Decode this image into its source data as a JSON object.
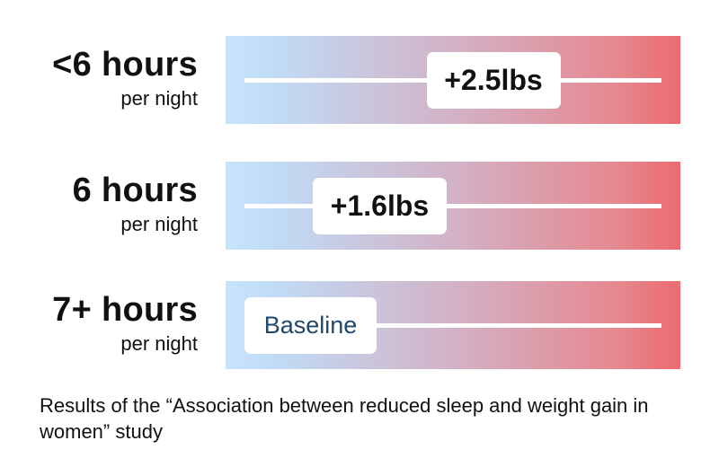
{
  "chart_data": {
    "type": "bar",
    "categories": [
      "<6 hours per night",
      "6 hours per night",
      "7+ hours per night"
    ],
    "values": [
      2.5,
      1.6,
      0
    ],
    "rows": [
      {
        "hours": "<6 hours",
        "per": "per night",
        "value": 2.5,
        "label": "+2.5lbs",
        "style": "strong"
      },
      {
        "hours": "6 hours",
        "per": "per night",
        "value": 1.6,
        "label": "+1.6lbs",
        "style": "strong"
      },
      {
        "hours": "7+ hours",
        "per": "per night",
        "value": 0,
        "label": "Baseline",
        "style": "baseline"
      }
    ],
    "xlim": [
      0,
      3.3
    ],
    "gradient_colors": [
      "#c7e4fb",
      "#d2b2c6",
      "#ec6b70"
    ]
  },
  "caption": "Results of the “Association between reduced sleep and weight gain in women” study"
}
